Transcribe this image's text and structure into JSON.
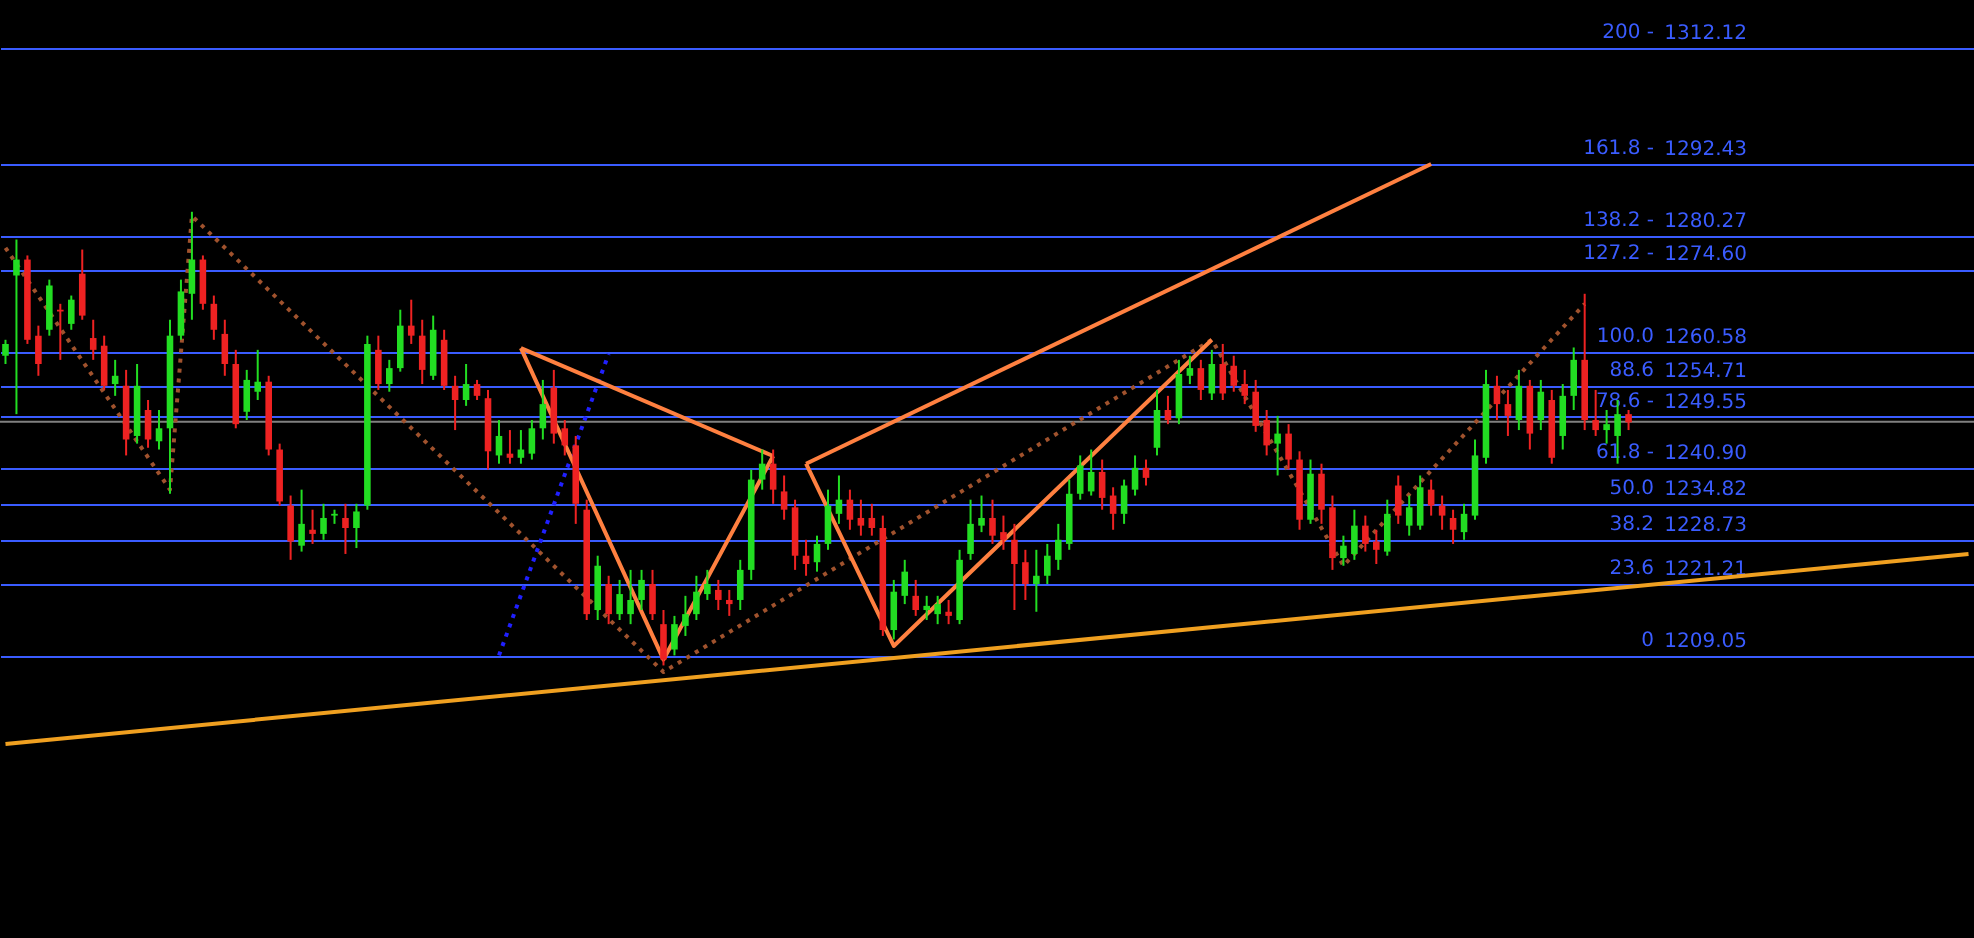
{
  "chart_data": {
    "type": "candlestick",
    "tick_labels": "y",
    "grid": "y",
    "ylim": [
      1161.2,
      1320.2
    ],
    "categories": [
      null,
      null,
      null,
      null,
      null,
      null,
      null,
      null,
      null,
      null,
      null,
      null,
      null,
      null,
      null,
      null,
      null,
      null,
      null,
      null,
      null,
      null,
      null,
      null,
      null,
      null,
      null,
      null,
      null,
      null,
      null,
      null,
      null,
      null,
      null,
      null,
      null,
      null,
      null,
      null,
      null,
      null,
      null,
      null,
      null,
      null,
      null,
      null,
      null,
      null,
      null,
      null,
      null,
      null,
      null,
      null,
      null,
      null,
      null,
      null,
      null,
      null,
      null,
      null,
      null,
      null,
      null,
      null,
      null,
      null,
      null,
      null,
      null,
      null,
      null,
      null,
      null,
      null,
      null,
      null,
      null,
      null,
      null,
      null,
      null,
      null,
      null,
      null,
      null,
      null,
      null,
      null,
      null,
      null,
      null,
      null,
      null,
      null,
      null,
      null,
      null,
      null,
      null,
      null,
      null,
      null,
      null,
      null,
      null,
      null,
      null,
      null,
      null,
      null,
      null,
      null,
      null,
      null,
      null,
      null,
      null,
      null,
      null,
      null,
      null,
      null,
      null,
      null,
      null,
      null,
      null,
      null,
      null,
      null,
      null,
      null,
      null,
      null,
      null,
      null,
      null,
      null,
      null,
      null,
      null,
      null,
      null,
      null,
      null,
      null,
      null,
      null,
      null,
      null,
      null,
      null,
      null,
      null,
      null,
      null,
      null,
      null,
      null,
      null,
      null,
      null,
      null,
      null,
      null,
      null,
      null,
      null,
      null,
      null,
      null,
      null,
      null,
      null,
      null,
      null
    ],
    "yticks": [
      1312.12,
      1292.43,
      1280.27,
      {
        "value": 1274.6,
        "label": "1274.60"
      },
      1260.58,
      1254.71,
      1249.55,
      {
        "value": 1240.9,
        "label": "1240.90"
      },
      1234.82,
      1228.73,
      1221.21,
      1209.05
    ],
    "annotations": [
      "200 -",
      "161.8 -",
      "138.2 -",
      "127.2 -",
      "100.0",
      "88.6",
      "78.6 -",
      "61.8 -",
      "50.0",
      "38.2",
      "23.6",
      "0"
    ],
    "ohlc": [
      [
        1259.9,
        1262.6,
        1258.5,
        1261.9
      ],
      [
        1273.5,
        1279.6,
        1250.0,
        1276.2
      ],
      [
        1276.2,
        1276.9,
        1261.9,
        1262.6
      ],
      [
        1263.3,
        1265.0,
        1256.5,
        1258.5
      ],
      [
        1264.3,
        1272.8,
        1263.3,
        1271.8
      ],
      [
        1267.7,
        1268.7,
        1259.2,
        1267.4
      ],
      [
        1265.3,
        1270.1,
        1264.3,
        1269.4
      ],
      [
        1273.8,
        1277.9,
        1266.0,
        1266.7
      ],
      [
        1262.9,
        1266.0,
        1259.2,
        1260.9
      ],
      [
        1261.6,
        1263.3,
        1254.1,
        1254.8
      ],
      [
        1255.1,
        1259.2,
        1253.1,
        1256.5
      ],
      [
        1254.8,
        1257.5,
        1243.0,
        1245.7
      ],
      [
        1246.3,
        1258.5,
        1245.0,
        1254.8
      ],
      [
        1250.7,
        1252.4,
        1244.3,
        1245.7
      ],
      [
        1245.4,
        1250.7,
        1244.0,
        1247.6
      ],
      [
        1247.6,
        1266.0,
        1236.5,
        1263.3
      ],
      [
        1263.3,
        1272.8,
        1262.6,
        1270.8
      ],
      [
        1270.4,
        1284.3,
        1266.0,
        1276.2
      ],
      [
        1276.2,
        1276.9,
        1267.7,
        1268.7
      ],
      [
        1268.7,
        1270.1,
        1262.6,
        1264.3
      ],
      [
        1263.6,
        1266.0,
        1256.5,
        1258.5
      ],
      [
        1258.5,
        1260.9,
        1247.6,
        1248.3
      ],
      [
        1250.4,
        1257.5,
        1249.0,
        1255.8
      ],
      [
        1253.8,
        1260.9,
        1252.4,
        1255.5
      ],
      [
        1255.5,
        1256.5,
        1243.0,
        1244.0
      ],
      [
        1244.0,
        1245.0,
        1234.5,
        1235.2
      ],
      [
        1234.5,
        1236.2,
        1225.3,
        1228.4
      ],
      [
        1227.7,
        1237.2,
        1226.7,
        1231.4
      ],
      [
        1230.4,
        1233.8,
        1228.0,
        1229.7
      ],
      [
        1229.7,
        1234.8,
        1228.7,
        1232.4
      ],
      [
        1232.8,
        1233.8,
        1231.4,
        1233.1
      ],
      [
        1232.4,
        1234.8,
        1226.3,
        1230.7
      ],
      [
        1230.7,
        1234.8,
        1227.3,
        1233.5
      ],
      [
        1234.5,
        1263.3,
        1233.8,
        1261.9
      ],
      [
        1260.9,
        1263.3,
        1254.1,
        1255.1
      ],
      [
        1255.1,
        1259.2,
        1253.8,
        1257.8
      ],
      [
        1257.8,
        1267.7,
        1257.2,
        1265.0
      ],
      [
        1265.0,
        1269.4,
        1261.9,
        1263.3
      ],
      [
        1263.3,
        1266.0,
        1255.1,
        1257.5
      ],
      [
        1256.5,
        1266.7,
        1255.8,
        1264.3
      ],
      [
        1262.6,
        1264.3,
        1254.1,
        1254.8
      ],
      [
        1254.8,
        1256.5,
        1247.3,
        1252.4
      ],
      [
        1252.4,
        1258.5,
        1251.4,
        1255.1
      ],
      [
        1255.1,
        1255.8,
        1252.4,
        1253.1
      ],
      [
        1252.7,
        1254.1,
        1240.6,
        1243.7
      ],
      [
        1243.0,
        1249.0,
        1241.6,
        1246.3
      ],
      [
        1243.3,
        1247.3,
        1241.6,
        1242.6
      ],
      [
        1242.6,
        1247.3,
        1241.6,
        1244.0
      ],
      [
        1243.3,
        1249.0,
        1242.3,
        1247.6
      ],
      [
        1247.6,
        1255.8,
        1245.7,
        1251.7
      ],
      [
        1254.5,
        1257.5,
        1245.0,
        1246.7
      ],
      [
        1247.6,
        1249.0,
        1243.0,
        1244.7
      ],
      [
        1244.7,
        1246.3,
        1231.4,
        1234.8
      ],
      [
        1233.8,
        1235.5,
        1215.1,
        1216.1
      ],
      [
        1216.8,
        1226.0,
        1215.1,
        1224.3
      ],
      [
        1221.2,
        1222.6,
        1214.4,
        1216.1
      ],
      [
        1216.1,
        1221.9,
        1215.1,
        1219.5
      ],
      [
        1216.1,
        1223.6,
        1214.4,
        1218.5
      ],
      [
        1218.5,
        1223.6,
        1216.8,
        1221.9
      ],
      [
        1221.2,
        1223.6,
        1215.1,
        1216.1
      ],
      [
        1214.4,
        1216.8,
        1207.4,
        1208.4
      ],
      [
        1210.1,
        1215.8,
        1209.1,
        1214.4
      ],
      [
        1214.1,
        1219.2,
        1212.4,
        1216.1
      ],
      [
        1216.1,
        1222.6,
        1215.1,
        1219.9
      ],
      [
        1219.5,
        1223.6,
        1218.5,
        1221.2
      ],
      [
        1220.2,
        1221.9,
        1216.8,
        1218.5
      ],
      [
        1218.5,
        1220.2,
        1215.8,
        1217.8
      ],
      [
        1218.5,
        1225.3,
        1216.8,
        1223.6
      ],
      [
        1223.6,
        1240.6,
        1221.9,
        1238.9
      ],
      [
        1238.9,
        1244.0,
        1237.2,
        1241.6
      ],
      [
        1241.6,
        1244.0,
        1234.8,
        1237.2
      ],
      [
        1236.9,
        1239.6,
        1232.1,
        1233.8
      ],
      [
        1234.2,
        1235.5,
        1223.6,
        1226.0
      ],
      [
        1226.0,
        1228.7,
        1222.6,
        1224.6
      ],
      [
        1224.9,
        1229.4,
        1223.3,
        1228.0
      ],
      [
        1228.0,
        1237.2,
        1227.0,
        1234.5
      ],
      [
        1233.1,
        1239.6,
        1231.4,
        1235.5
      ],
      [
        1235.5,
        1237.2,
        1230.4,
        1232.1
      ],
      [
        1232.4,
        1235.5,
        1229.4,
        1231.1
      ],
      [
        1232.4,
        1234.8,
        1229.4,
        1230.7
      ],
      [
        1230.7,
        1232.8,
        1212.4,
        1213.4
      ],
      [
        1213.4,
        1221.9,
        1211.8,
        1219.9
      ],
      [
        1219.2,
        1225.3,
        1217.8,
        1223.3
      ],
      [
        1219.2,
        1221.9,
        1215.8,
        1216.8
      ],
      [
        1216.8,
        1219.2,
        1215.1,
        1217.5
      ],
      [
        1216.1,
        1219.2,
        1214.4,
        1217.8
      ],
      [
        1216.5,
        1218.5,
        1214.4,
        1215.8
      ],
      [
        1215.1,
        1227.0,
        1214.4,
        1225.3
      ],
      [
        1226.3,
        1235.5,
        1225.3,
        1231.4
      ],
      [
        1231.1,
        1236.2,
        1230.0,
        1232.4
      ],
      [
        1232.4,
        1235.5,
        1228.0,
        1229.4
      ],
      [
        1230.0,
        1232.8,
        1227.0,
        1228.7
      ],
      [
        1228.7,
        1231.4,
        1216.8,
        1224.6
      ],
      [
        1224.9,
        1227.0,
        1218.5,
        1221.2
      ],
      [
        1221.2,
        1227.0,
        1216.5,
        1222.6
      ],
      [
        1222.6,
        1228.0,
        1221.2,
        1226.0
      ],
      [
        1225.3,
        1231.4,
        1223.6,
        1228.7
      ],
      [
        1228.0,
        1238.9,
        1227.0,
        1236.5
      ],
      [
        1236.5,
        1243.0,
        1235.5,
        1241.3
      ],
      [
        1236.9,
        1244.0,
        1236.2,
        1240.2
      ],
      [
        1240.2,
        1242.3,
        1233.8,
        1235.8
      ],
      [
        1236.2,
        1237.6,
        1230.4,
        1233.1
      ],
      [
        1233.1,
        1238.9,
        1231.4,
        1237.9
      ],
      [
        1237.2,
        1243.0,
        1236.2,
        1240.9
      ],
      [
        1240.9,
        1242.3,
        1237.9,
        1239.2
      ],
      [
        1244.3,
        1254.1,
        1243.0,
        1250.7
      ],
      [
        1250.7,
        1253.1,
        1248.3,
        1249.0
      ],
      [
        1249.3,
        1259.2,
        1248.3,
        1256.8
      ],
      [
        1256.5,
        1259.9,
        1255.1,
        1257.8
      ],
      [
        1257.8,
        1259.2,
        1252.4,
        1254.1
      ],
      [
        1253.5,
        1260.9,
        1252.4,
        1258.5
      ],
      [
        1258.5,
        1261.9,
        1252.4,
        1253.5
      ],
      [
        1258.2,
        1259.9,
        1253.8,
        1254.8
      ],
      [
        1255.1,
        1257.5,
        1251.7,
        1253.1
      ],
      [
        1253.8,
        1255.8,
        1247.0,
        1248.0
      ],
      [
        1249.0,
        1250.7,
        1243.0,
        1244.7
      ],
      [
        1245.0,
        1249.7,
        1239.6,
        1246.7
      ],
      [
        1246.7,
        1248.3,
        1240.6,
        1242.3
      ],
      [
        1242.3,
        1243.7,
        1230.4,
        1232.1
      ],
      [
        1232.1,
        1242.3,
        1231.4,
        1239.9
      ],
      [
        1239.9,
        1241.6,
        1231.4,
        1233.8
      ],
      [
        1234.2,
        1236.2,
        1223.6,
        1225.6
      ],
      [
        1225.6,
        1229.4,
        1224.3,
        1227.7
      ],
      [
        1226.3,
        1233.8,
        1225.3,
        1231.1
      ],
      [
        1231.1,
        1232.8,
        1226.7,
        1228.0
      ],
      [
        1228.4,
        1230.4,
        1224.6,
        1227.0
      ],
      [
        1226.7,
        1235.5,
        1226.0,
        1233.1
      ],
      [
        1237.9,
        1239.6,
        1231.4,
        1232.8
      ],
      [
        1231.1,
        1236.2,
        1229.4,
        1234.2
      ],
      [
        1231.1,
        1239.6,
        1230.4,
        1237.6
      ],
      [
        1237.2,
        1238.9,
        1232.8,
        1234.5
      ],
      [
        1234.5,
        1236.2,
        1230.4,
        1232.8
      ],
      [
        1232.4,
        1233.8,
        1228.0,
        1230.4
      ],
      [
        1230.0,
        1234.8,
        1228.7,
        1233.1
      ],
      [
        1232.8,
        1245.7,
        1232.1,
        1243.0
      ],
      [
        1242.6,
        1257.5,
        1241.6,
        1255.1
      ],
      [
        1254.8,
        1256.5,
        1249.0,
        1251.7
      ],
      [
        1251.7,
        1254.1,
        1246.3,
        1249.7
      ],
      [
        1249.0,
        1257.5,
        1247.3,
        1254.8
      ],
      [
        1254.8,
        1255.8,
        1244.0,
        1246.7
      ],
      [
        1249.0,
        1255.8,
        1247.3,
        1253.8
      ],
      [
        1252.4,
        1254.1,
        1241.6,
        1242.6
      ],
      [
        1246.3,
        1255.1,
        1244.0,
        1253.1
      ],
      [
        1253.1,
        1261.3,
        1250.7,
        1259.2
      ],
      [
        1259.2,
        1270.4,
        1247.3,
        1249.0
      ],
      [
        1249.0,
        1254.1,
        1246.3,
        1247.3
      ],
      [
        1247.3,
        1250.7,
        1245.0,
        1248.3
      ],
      [
        1246.3,
        1252.4,
        1241.6,
        1250.0
      ],
      [
        1250.0,
        1250.7,
        1247.3,
        1248.6
      ],
      null,
      null,
      null,
      null,
      null,
      null,
      null,
      null,
      null,
      null,
      null,
      null,
      null,
      null,
      null,
      null,
      null,
      null,
      null,
      null,
      null,
      null,
      null,
      null,
      null,
      null,
      null,
      null,
      null,
      null,
      null
    ],
    "colors": [
      "#22dd22",
      "#22dd22",
      "#ee2222",
      "#ee2222",
      "#22dd22",
      "#ee2222",
      "#22dd22",
      "#ee2222",
      "#ee2222",
      "#ee2222",
      "#22dd22",
      "#ee2222",
      "#22dd22",
      "#ee2222",
      "#22dd22",
      "#22dd22",
      "#22dd22",
      "#22dd22",
      "#ee2222",
      "#ee2222",
      "#ee2222",
      "#ee2222",
      "#22dd22",
      "#22dd22",
      "#ee2222",
      "#ee2222",
      "#ee2222",
      "#22dd22",
      "#ee2222",
      "#22dd22",
      "#22dd22",
      "#ee2222",
      "#22dd22",
      "#22dd22",
      "#ee2222",
      "#22dd22",
      "#22dd22",
      "#ee2222",
      "#ee2222",
      "#22dd22",
      "#ee2222",
      "#ee2222",
      "#22dd22",
      "#ee2222",
      "#ee2222",
      "#22dd22",
      "#ee2222",
      "#22dd22",
      "#22dd22",
      "#22dd22",
      "#ee2222",
      "#ee2222",
      "#ee2222",
      "#ee2222",
      "#22dd22",
      "#ee2222",
      "#22dd22",
      "#22dd22",
      "#22dd22",
      "#ee2222",
      "#ee2222",
      "#22dd22",
      "#22dd22",
      "#22dd22",
      "#22dd22",
      "#ee2222",
      "#ee2222",
      "#22dd22",
      "#22dd22",
      "#22dd22",
      "#ee2222",
      "#ee2222",
      "#ee2222",
      "#ee2222",
      "#22dd22",
      "#22dd22",
      "#22dd22",
      "#ee2222",
      "#ee2222",
      "#ee2222",
      "#ee2222",
      "#22dd22",
      "#22dd22",
      "#ee2222",
      "#22dd22",
      "#22dd22",
      "#ee2222",
      "#22dd22",
      "#22dd22",
      "#22dd22",
      "#ee2222",
      "#ee2222",
      "#ee2222",
      "#ee2222",
      "#22dd22",
      "#22dd22",
      "#22dd22",
      "#22dd22",
      "#22dd22",
      "#22dd22",
      "#ee2222",
      "#ee2222",
      "#22dd22",
      "#22dd22",
      "#ee2222",
      "#22dd22",
      "#ee2222",
      "#22dd22",
      "#22dd22",
      "#ee2222",
      "#22dd22",
      "#ee2222",
      "#ee2222",
      "#ee2222",
      "#ee2222",
      "#ee2222",
      "#22dd22",
      "#ee2222",
      "#ee2222",
      "#22dd22",
      "#ee2222",
      "#ee2222",
      "#22dd22",
      "#22dd22",
      "#ee2222",
      "#ee2222",
      "#22dd22",
      "#ee2222",
      "#22dd22",
      "#22dd22",
      "#ee2222",
      "#ee2222",
      "#ee2222",
      "#22dd22",
      "#22dd22",
      "#22dd22",
      "#ee2222",
      "#ee2222",
      "#22dd22",
      "#ee2222",
      "#22dd22",
      "#ee2222",
      "#22dd22",
      "#22dd22",
      "#ee2222",
      "#ee2222",
      "#22dd22",
      "#22dd22",
      "#ee2222",
      null,
      null,
      null,
      null,
      null,
      null,
      null,
      null,
      null,
      null,
      null,
      null,
      null,
      null,
      null,
      null,
      null,
      null,
      null,
      null,
      null,
      null,
      null,
      null,
      null,
      null,
      null,
      null,
      null,
      null,
      null
    ],
    "ref_lines": [
      {
        "axis": "y",
        "value": 1248.7,
        "color": "#808080"
      }
    ],
    "series": [
      {
        "type": "line",
        "color": "#f0a020",
        "values": [
          1194.1,
          null,
          null,
          null,
          null,
          null,
          null,
          null,
          null,
          null,
          null,
          null,
          null,
          null,
          null,
          null,
          null,
          null,
          null,
          null,
          null,
          null,
          null,
          null,
          null,
          null,
          null,
          null,
          null,
          null,
          null,
          null,
          null,
          null,
          null,
          null,
          null,
          null,
          null,
          null,
          null,
          null,
          null,
          null,
          null,
          null,
          null,
          null,
          null,
          null,
          null,
          null,
          null,
          null,
          null,
          null,
          null,
          null,
          null,
          null,
          null,
          null,
          null,
          null,
          null,
          null,
          null,
          null,
          null,
          null,
          null,
          null,
          null,
          null,
          null,
          null,
          null,
          null,
          null,
          null,
          null,
          null,
          null,
          null,
          null,
          null,
          null,
          null,
          null,
          null,
          null,
          null,
          null,
          null,
          null,
          null,
          null,
          null,
          null,
          null,
          null,
          null,
          null,
          null,
          null,
          null,
          null,
          null,
          null,
          null,
          null,
          null,
          null,
          null,
          null,
          null,
          null,
          null,
          null,
          null,
          null,
          null,
          null,
          null,
          null,
          null,
          null,
          null,
          null,
          null,
          null,
          null,
          null,
          null,
          null,
          null,
          null,
          null,
          null,
          null,
          null,
          null,
          null,
          null,
          null,
          null,
          null,
          null,
          null,
          null,
          null,
          null,
          null,
          null,
          null,
          null,
          null,
          null,
          null,
          null,
          null,
          null,
          null,
          null,
          null,
          null,
          null,
          null,
          null,
          null,
          null,
          null,
          null,
          null,
          null,
          null,
          null,
          null,
          null,
          1226.3
        ]
      },
      {
        "type": "line",
        "color": "#a0522d",
        "line_style": "dotted",
        "values": [
          1278.2,
          null,
          null,
          null,
          null,
          null,
          null,
          null,
          null,
          null,
          null,
          null,
          null,
          null,
          null,
          1237.2,
          null,
          1283.6,
          null,
          null,
          null,
          null,
          null,
          null,
          null,
          null,
          null,
          null,
          null,
          null,
          null,
          null,
          null,
          null,
          null,
          null,
          null,
          null,
          null,
          null,
          null,
          null,
          null,
          null,
          null,
          null,
          null,
          null,
          null,
          null,
          null,
          null,
          null,
          null,
          null,
          null,
          null,
          null,
          null,
          null,
          1206.3,
          null,
          null,
          null,
          null,
          null,
          null,
          null,
          null,
          null,
          null,
          null,
          null,
          null,
          null,
          null,
          null,
          null,
          null,
          null,
          null,
          null,
          null,
          null,
          null,
          null,
          null,
          null,
          null,
          null,
          null,
          null,
          null,
          null,
          null,
          null,
          null,
          null,
          null,
          null,
          null,
          null,
          null,
          null,
          null,
          null,
          null,
          null,
          null,
          null,
          1262.6,
          null,
          null,
          null,
          null,
          null,
          null,
          null,
          null,
          null,
          null,
          null,
          1224.3,
          null,
          null,
          null,
          null,
          null,
          null,
          null,
          null,
          null,
          null,
          null,
          null,
          null,
          null,
          null,
          null,
          null,
          null,
          null,
          null,
          null,
          1268.7,
          null,
          null,
          null,
          null,
          null,
          null,
          null,
          null,
          null,
          null,
          null,
          null,
          null,
          null,
          null,
          null,
          null,
          null,
          null,
          null,
          null,
          null,
          null,
          null,
          null,
          null,
          null,
          null,
          null,
          null,
          null,
          null,
          null,
          null,
          null
        ]
      },
      {
        "type": "line",
        "color": "#2020ff",
        "line_style": "dotted",
        "values": [
          null,
          null,
          null,
          null,
          null,
          null,
          null,
          null,
          null,
          null,
          null,
          null,
          null,
          null,
          null,
          null,
          null,
          null,
          null,
          null,
          null,
          null,
          null,
          null,
          null,
          null,
          null,
          null,
          null,
          null,
          null,
          null,
          null,
          null,
          null,
          null,
          null,
          null,
          null,
          null,
          null,
          null,
          null,
          null,
          null,
          1209.1,
          null,
          null,
          null,
          null,
          null,
          null,
          null,
          null,
          null,
          1260.2,
          null,
          null,
          null,
          null,
          null,
          null,
          null,
          null,
          null,
          null,
          null,
          null,
          null,
          null,
          null,
          null,
          null,
          null,
          null,
          null,
          null,
          null,
          null,
          null,
          null,
          null,
          null,
          null,
          null,
          null,
          null,
          null,
          null,
          null,
          null,
          null,
          null,
          null,
          null,
          null,
          null,
          null,
          null,
          null,
          null,
          null,
          null,
          null,
          null,
          null,
          null,
          null,
          null,
          null,
          null,
          null,
          null,
          null,
          null,
          null,
          null,
          null,
          null,
          null,
          null,
          null,
          null,
          null,
          null,
          null,
          null,
          null,
          null,
          null,
          null,
          null,
          null,
          null,
          null,
          null,
          null,
          null,
          null,
          null,
          null,
          null,
          null,
          null,
          null,
          null,
          null,
          null,
          null,
          null,
          null,
          null,
          null,
          null,
          null,
          null,
          null,
          null,
          null,
          null,
          null,
          null,
          null,
          null,
          null,
          null,
          null,
          null,
          null,
          null,
          null,
          null,
          null,
          null,
          null,
          null,
          null,
          null,
          null,
          null
        ]
      },
      {
        "type": "line",
        "color": "#ff8040",
        "values": [
          null,
          null,
          null,
          null,
          null,
          null,
          null,
          null,
          null,
          null,
          null,
          null,
          null,
          null,
          null,
          null,
          null,
          null,
          null,
          null,
          null,
          null,
          null,
          null,
          null,
          null,
          null,
          null,
          null,
          null,
          null,
          null,
          null,
          null,
          null,
          null,
          null,
          null,
          null,
          null,
          null,
          null,
          null,
          null,
          null,
          null,
          null,
          1261.2,
          null,
          null,
          null,
          null,
          null,
          null,
          null,
          null,
          null,
          null,
          null,
          null,
          null,
          null,
          null,
          null,
          null,
          null,
          null,
          null,
          null,
          null,
          1242.9,
          null,
          null,
          null,
          null,
          null,
          null,
          null,
          null,
          null,
          null,
          null,
          null,
          null,
          null,
          null,
          null,
          null,
          null,
          null,
          null,
          null,
          null,
          null,
          null,
          null,
          null,
          null,
          null,
          null,
          null,
          null,
          null,
          null,
          null,
          null,
          null,
          null,
          null,
          null,
          null,
          null,
          null,
          null,
          null,
          null,
          null,
          null,
          null,
          null,
          null,
          null,
          null,
          null,
          null,
          null,
          null,
          null,
          null,
          null,
          null,
          null,
          null,
          null,
          null,
          null,
          null,
          null,
          null,
          null,
          null,
          null,
          null,
          null,
          null,
          null,
          null,
          null,
          null,
          null,
          null,
          null,
          null,
          null,
          null,
          null,
          null,
          null,
          null,
          null,
          null,
          null,
          null,
          null,
          null,
          null,
          null,
          null,
          null,
          null,
          null,
          null,
          null,
          null,
          null,
          null,
          null,
          null,
          null,
          null
        ]
      },
      {
        "type": "line",
        "color": "#ff8040",
        "values": [
          null,
          null,
          null,
          null,
          null,
          null,
          null,
          null,
          null,
          null,
          null,
          null,
          null,
          null,
          null,
          null,
          null,
          null,
          null,
          null,
          null,
          null,
          null,
          null,
          null,
          null,
          null,
          null,
          null,
          null,
          null,
          null,
          null,
          null,
          null,
          null,
          null,
          null,
          null,
          null,
          null,
          null,
          null,
          null,
          null,
          null,
          null,
          1261.2,
          null,
          null,
          null,
          null,
          null,
          null,
          null,
          null,
          null,
          null,
          null,
          null,
          1208.4,
          null,
          null,
          null,
          null,
          null,
          null,
          null,
          null,
          null,
          1242.9,
          null,
          null,
          null,
          null,
          null,
          null,
          null,
          null,
          null,
          null,
          null,
          null,
          null,
          null,
          null,
          null,
          null,
          null,
          null,
          null,
          null,
          null,
          null,
          null,
          null,
          null,
          null,
          null,
          null,
          null,
          null,
          null,
          null,
          null,
          null,
          null,
          null,
          null,
          null,
          null,
          null,
          null,
          null,
          null,
          null,
          null,
          null,
          null,
          null,
          null,
          null,
          null,
          null,
          null,
          null,
          null,
          null,
          null,
          null,
          null,
          null,
          null,
          null,
          null,
          null,
          null,
          null,
          null,
          null,
          null,
          null,
          null,
          null,
          null,
          null,
          null,
          null,
          null,
          null,
          null,
          null,
          null,
          null,
          null,
          null,
          null,
          null,
          null,
          null,
          null,
          null,
          null,
          null,
          null,
          null,
          null,
          null,
          null,
          null,
          null,
          null,
          null,
          null,
          null,
          null,
          null,
          null,
          null,
          null
        ]
      },
      {
        "type": "line",
        "color": "#ff8040",
        "values": [
          null,
          null,
          null,
          null,
          null,
          null,
          null,
          null,
          null,
          null,
          null,
          null,
          null,
          null,
          null,
          null,
          null,
          null,
          null,
          null,
          null,
          null,
          null,
          null,
          null,
          null,
          null,
          null,
          null,
          null,
          null,
          null,
          null,
          null,
          null,
          null,
          null,
          null,
          null,
          null,
          null,
          null,
          null,
          null,
          null,
          null,
          null,
          null,
          null,
          null,
          null,
          null,
          null,
          null,
          null,
          null,
          null,
          null,
          null,
          null,
          null,
          null,
          null,
          null,
          null,
          null,
          null,
          null,
          null,
          null,
          null,
          null,
          null,
          1241.6,
          null,
          null,
          null,
          null,
          null,
          null,
          null,
          1210.7,
          null,
          null,
          null,
          null,
          null,
          null,
          null,
          null,
          null,
          null,
          null,
          null,
          null,
          null,
          null,
          null,
          null,
          null,
          null,
          null,
          null,
          null,
          null,
          null,
          null,
          null,
          null,
          null,
          1262.6,
          null,
          null,
          null,
          null,
          null,
          null,
          null,
          null,
          null,
          null,
          null,
          null,
          null,
          null,
          null,
          null,
          null,
          null,
          null,
          null,
          null,
          null,
          null,
          null,
          null,
          null,
          null,
          null,
          null,
          null,
          null,
          null,
          null,
          null,
          null,
          null,
          null,
          null,
          null,
          null,
          null,
          null,
          null,
          null,
          null,
          null,
          null,
          null,
          null,
          null,
          null,
          null,
          null,
          null,
          null,
          null,
          null,
          null,
          null,
          null,
          null,
          null,
          null,
          null,
          null,
          null,
          null,
          null,
          null
        ]
      },
      {
        "type": "line",
        "color": "#ff8040",
        "values": [
          null,
          null,
          null,
          null,
          null,
          null,
          null,
          null,
          null,
          null,
          null,
          null,
          null,
          null,
          null,
          null,
          null,
          null,
          null,
          null,
          null,
          null,
          null,
          null,
          null,
          null,
          null,
          null,
          null,
          null,
          null,
          null,
          null,
          null,
          null,
          null,
          null,
          null,
          null,
          null,
          null,
          null,
          null,
          null,
          null,
          null,
          null,
          null,
          null,
          null,
          null,
          null,
          null,
          null,
          null,
          null,
          null,
          null,
          null,
          null,
          null,
          null,
          null,
          null,
          null,
          null,
          null,
          null,
          null,
          null,
          null,
          null,
          null,
          1241.6,
          null,
          null,
          null,
          null,
          null,
          null,
          null,
          null,
          null,
          null,
          null,
          null,
          null,
          null,
          null,
          null,
          null,
          null,
          null,
          null,
          null,
          null,
          null,
          null,
          null,
          null,
          null,
          null,
          null,
          null,
          null,
          null,
          null,
          null,
          null,
          null,
          null,
          null,
          null,
          null,
          null,
          null,
          null,
          null,
          null,
          null,
          null,
          null,
          null,
          null,
          null,
          null,
          null,
          null,
          null,
          null,
          1292.4,
          null,
          null,
          null,
          null,
          null,
          null,
          null,
          null,
          null,
          null,
          null,
          null,
          null,
          null,
          null,
          null,
          null,
          null,
          null,
          null,
          null,
          null,
          null,
          null,
          null,
          null,
          null,
          null,
          null,
          null,
          null,
          null,
          null,
          null,
          null,
          null,
          null,
          null,
          null,
          null,
          null,
          null,
          null,
          null,
          null,
          null,
          null,
          null,
          null
        ]
      }
    ]
  }
}
